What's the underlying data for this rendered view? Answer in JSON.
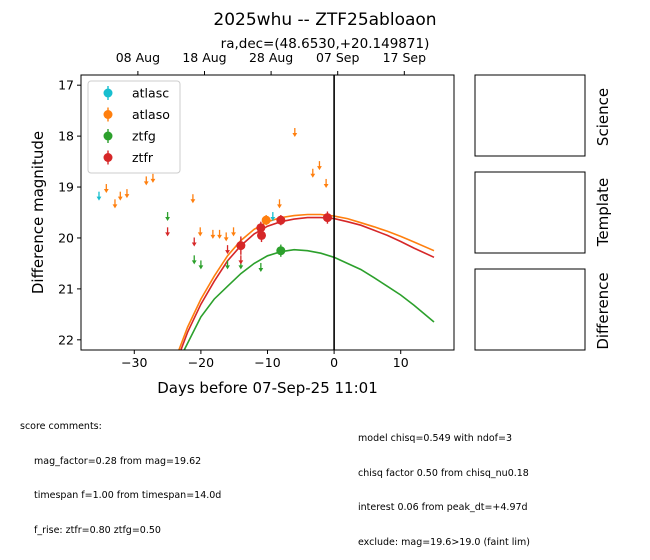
{
  "chart_data": {
    "type": "scatter",
    "title": "2025whu -- ZTF25abloaon",
    "subtitle": "ra,dec=(48.6530,+20.149871)",
    "xlabel": "Days before 07-Sep-25 11:01",
    "ylabel": "Difference magnitude",
    "xlim": [
      -38,
      18
    ],
    "ylim": [
      22.2,
      16.8
    ],
    "y_inverted": true,
    "x_ticks": [
      -30,
      -20,
      -10,
      0,
      10
    ],
    "y_ticks": [
      17,
      18,
      19,
      20,
      21,
      22
    ],
    "top_axis_ticks": [
      {
        "x": -29.46,
        "label": "08 Aug"
      },
      {
        "x": -19.46,
        "label": "18 Aug"
      },
      {
        "x": -9.46,
        "label": "28 Aug"
      },
      {
        "x": 0.54,
        "label": "07 Sep"
      },
      {
        "x": 10.54,
        "label": "17 Sep"
      }
    ],
    "vline_x": 0,
    "legend_position": "top-left",
    "series": [
      {
        "name": "atlasc",
        "color": "#17becf",
        "detections": [],
        "upper_limits": [
          [
            -35.3,
            19.15
          ],
          [
            -9.2,
            19.55
          ]
        ]
      },
      {
        "name": "atlaso",
        "color": "#ff7f0e",
        "detections": [
          [
            -10.2,
            19.65,
            0.1
          ]
        ],
        "upper_limits": [
          [
            -34.2,
            19.0
          ],
          [
            -32.9,
            19.3
          ],
          [
            -32.1,
            19.15
          ],
          [
            -31.1,
            19.1
          ],
          [
            -28.2,
            18.85
          ],
          [
            -27.2,
            18.8
          ],
          [
            -21.2,
            19.2
          ],
          [
            -20.1,
            19.85
          ],
          [
            -18.2,
            19.9
          ],
          [
            -17.2,
            19.9
          ],
          [
            -16.2,
            19.95
          ],
          [
            -15.1,
            19.85
          ],
          [
            -8.2,
            19.3
          ],
          [
            -5.9,
            17.9
          ],
          [
            -3.2,
            18.7
          ],
          [
            -2.2,
            18.55
          ],
          [
            -1.2,
            18.9
          ]
        ]
      },
      {
        "name": "ztfg",
        "color": "#2ca02c",
        "detections": [
          [
            -8.0,
            20.25,
            0.12
          ]
        ],
        "upper_limits": [
          [
            -25.0,
            19.55
          ],
          [
            -21.0,
            20.4
          ],
          [
            -20.0,
            20.5
          ],
          [
            -16.0,
            20.5
          ],
          [
            -14.0,
            20.5
          ],
          [
            -11.0,
            20.55
          ]
        ]
      },
      {
        "name": "ztfr",
        "color": "#d62728",
        "detections": [
          [
            -14.0,
            20.15,
            0.18
          ],
          [
            -11.0,
            19.8,
            0.12
          ],
          [
            -10.9,
            19.95,
            0.13
          ],
          [
            -8.0,
            19.65,
            0.1
          ],
          [
            -1.0,
            19.6,
            0.12
          ]
        ],
        "upper_limits": [
          [
            -25.0,
            19.85
          ],
          [
            -21.0,
            20.05
          ],
          [
            -16.0,
            20.2
          ],
          [
            -14.0,
            20.4
          ]
        ]
      }
    ],
    "model_curves": [
      {
        "name": "ztfg",
        "color": "#2ca02c",
        "points": [
          [
            -22.5,
            22.2
          ],
          [
            -20,
            21.55
          ],
          [
            -18,
            21.2
          ],
          [
            -16,
            20.95
          ],
          [
            -14,
            20.7
          ],
          [
            -12,
            20.5
          ],
          [
            -10,
            20.35
          ],
          [
            -8,
            20.27
          ],
          [
            -6,
            20.23
          ],
          [
            -4,
            20.25
          ],
          [
            -2,
            20.3
          ],
          [
            0,
            20.38
          ],
          [
            2,
            20.5
          ],
          [
            4,
            20.62
          ],
          [
            6,
            20.78
          ],
          [
            8,
            20.95
          ],
          [
            10,
            21.12
          ],
          [
            12,
            21.32
          ],
          [
            15,
            21.65
          ]
        ]
      },
      {
        "name": "ztfr",
        "color": "#d62728",
        "points": [
          [
            -23.0,
            22.2
          ],
          [
            -22,
            21.85
          ],
          [
            -20,
            21.3
          ],
          [
            -18,
            20.85
          ],
          [
            -16,
            20.45
          ],
          [
            -14,
            20.15
          ],
          [
            -12,
            19.92
          ],
          [
            -10,
            19.77
          ],
          [
            -8,
            19.68
          ],
          [
            -6,
            19.63
          ],
          [
            -4,
            19.6
          ],
          [
            -2,
            19.6
          ],
          [
            0,
            19.62
          ],
          [
            2,
            19.68
          ],
          [
            4,
            19.75
          ],
          [
            6,
            19.85
          ],
          [
            8,
            19.95
          ],
          [
            10,
            20.07
          ],
          [
            12,
            20.2
          ],
          [
            15,
            20.38
          ]
        ]
      },
      {
        "name": "atlaso",
        "color": "#ff7f0e",
        "points": [
          [
            -23.3,
            22.2
          ],
          [
            -22,
            21.75
          ],
          [
            -20,
            21.2
          ],
          [
            -18,
            20.75
          ],
          [
            -16,
            20.35
          ],
          [
            -14,
            20.05
          ],
          [
            -12,
            19.83
          ],
          [
            -10,
            19.68
          ],
          [
            -8,
            19.6
          ],
          [
            -6,
            19.56
          ],
          [
            -4,
            19.54
          ],
          [
            -2,
            19.54
          ],
          [
            0,
            19.57
          ],
          [
            2,
            19.62
          ],
          [
            4,
            19.7
          ],
          [
            6,
            19.78
          ],
          [
            8,
            19.87
          ],
          [
            10,
            19.97
          ],
          [
            12,
            20.08
          ],
          [
            15,
            20.25
          ]
        ]
      }
    ]
  },
  "side_panels": [
    "Science",
    "Template",
    "Difference"
  ],
  "comments_left": {
    "heading": "score comments:",
    "lines": [
      "mag_factor=0.28 from mag=19.62",
      "timespan f=1.00 from timespan=14.0d",
      "f_rise: ztfr=0.80 ztfg=0.50"
    ]
  },
  "comments_right": {
    "lines": [
      "model chisq=0.549 with ndof=3",
      "chisq factor 0.50 from chisq_nu0.18",
      "interest 0.06 from peak_dt=+4.97d",
      "exclude: mag=19.6>19.0 (faint lim)"
    ]
  }
}
